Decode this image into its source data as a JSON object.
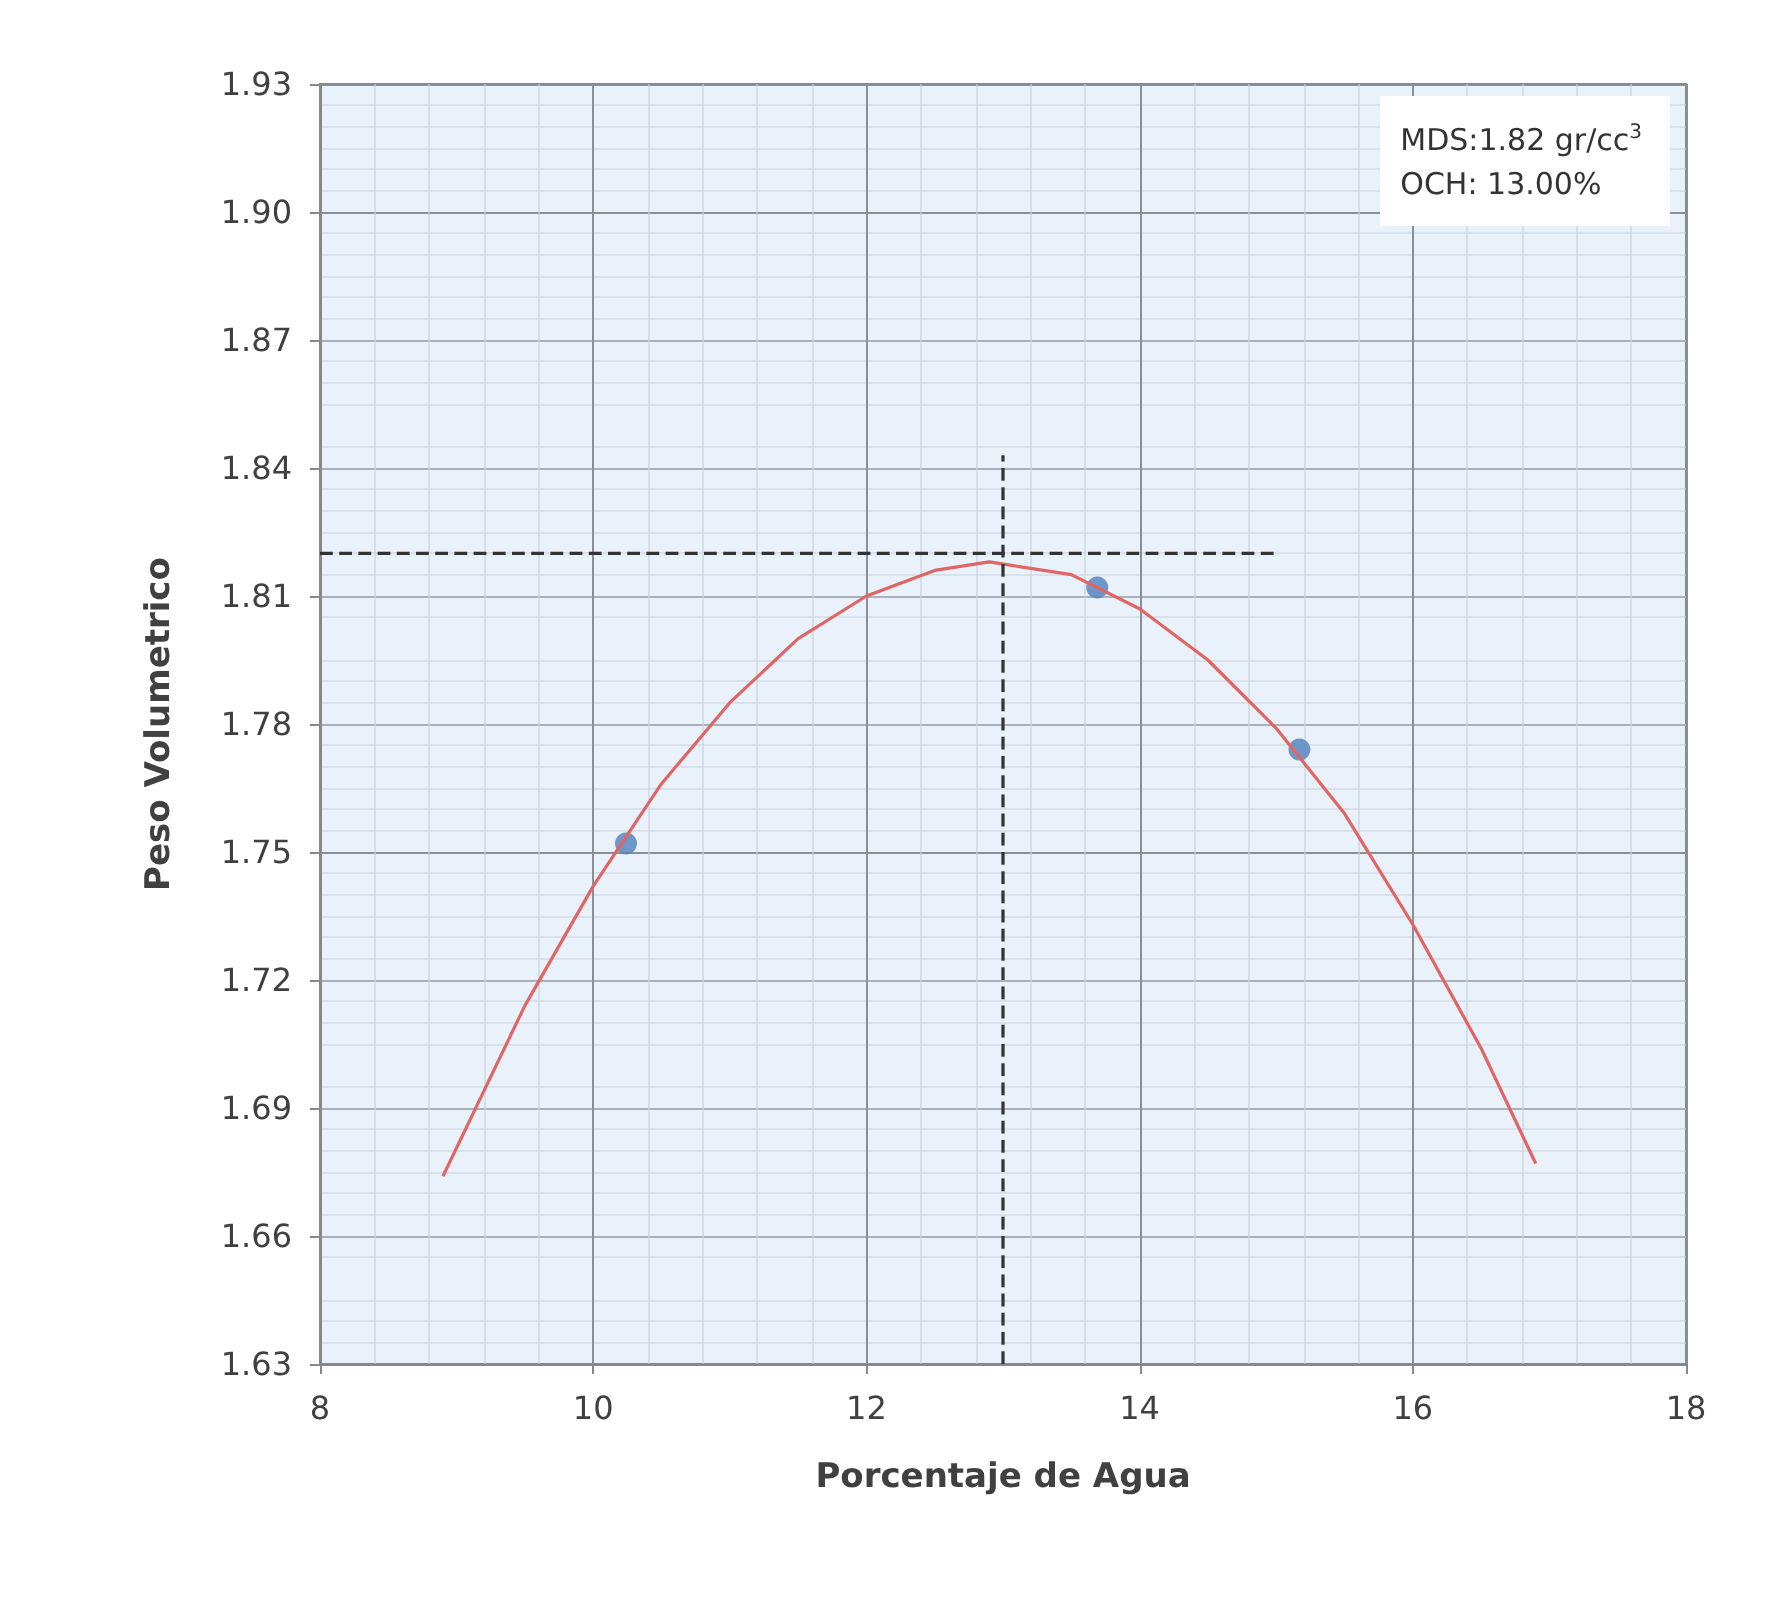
{
  "chart_data": {
    "type": "scatter",
    "xlabel": "Porcentaje de Agua",
    "ylabel": "Peso Volumetrico",
    "annotations": [
      "MDS:1.82 gr/cc$^{3}$",
      "OCH: 13.00%"
    ],
    "series": [
      {
        "color": "#4f81bd",
        "marker": "circle",
        "x": [
          10.24,
          13.69,
          15.17
        ],
        "values": [
          1.752,
          1.812,
          1.774
        ]
      },
      {
        "type": "line",
        "color": "#e06666",
        "marker": "none",
        "line_style": "solid",
        "x": [
          8.9,
          9.5,
          10,
          10.5,
          11,
          11.5,
          12,
          12.5,
          12.9,
          13.5,
          14,
          14.5,
          15,
          15.5,
          16,
          16.5,
          16.9
        ],
        "values": [
          1.674,
          1.714,
          1.742,
          1.766,
          1.785,
          1.8,
          1.81,
          1.816,
          1.818,
          1.815,
          1.807,
          1.795,
          1.779,
          1.759,
          1.733,
          1.704,
          1.677
        ]
      },
      {
        "type": "line",
        "color": "#333333",
        "marker": "none",
        "line_style": "dashed",
        "x": [
          8,
          15
        ],
        "values": [
          1.82,
          1.82
        ]
      },
      {
        "type": "line",
        "color": "#333333",
        "marker": "none",
        "line_style": "dashed",
        "x": [
          13,
          13
        ],
        "values": [
          1.63,
          1.843
        ]
      }
    ],
    "xlim": [
      8,
      18
    ],
    "xticks": [
      8,
      10,
      12,
      14,
      16,
      18
    ],
    "ylim": [
      1.63,
      1.93
    ],
    "yticks": [
      1.63,
      1.66,
      1.69,
      1.72,
      1.75,
      1.78,
      1.81,
      1.84,
      1.87,
      {
        "value": 1.9,
        "label": "1.90"
      },
      1.93
    ],
    "grid": true
  }
}
